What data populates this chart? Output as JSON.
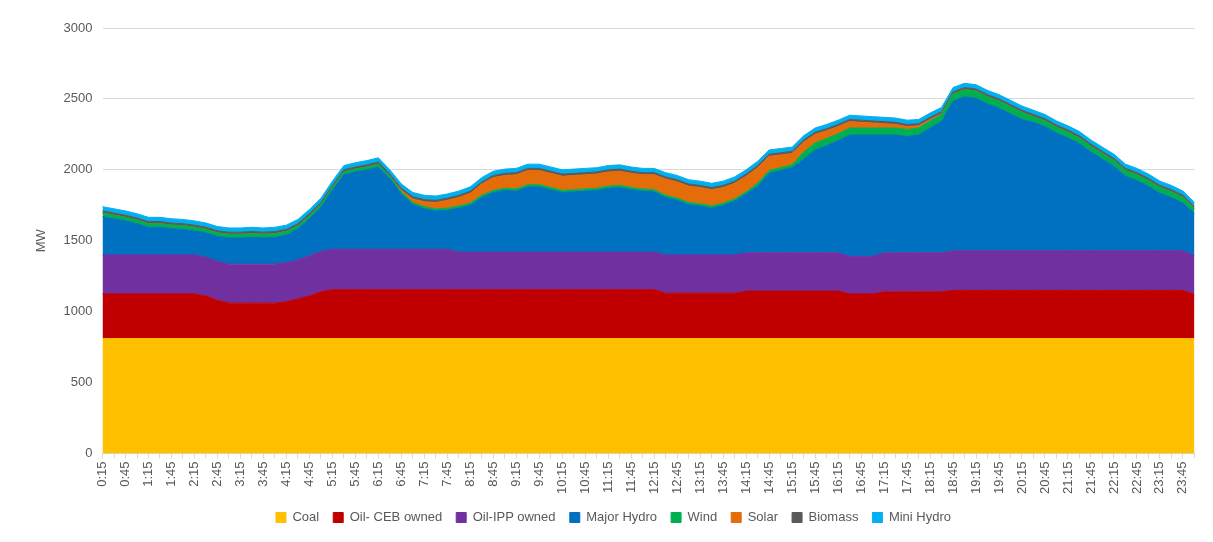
{
  "chart_data": {
    "type": "area",
    "stacked": true,
    "ylabel": "MW",
    "ylim": [
      0,
      3000
    ],
    "yticks": [
      0,
      500,
      1000,
      1500,
      2000,
      2500,
      3000
    ],
    "grid": "y",
    "legend": "bottom",
    "categories": [
      "0:15",
      null,
      "0:45",
      null,
      "1:15",
      null,
      "1:45",
      null,
      "2:15",
      null,
      "2:45",
      null,
      "3:15",
      null,
      "3:45",
      null,
      "4:15",
      null,
      "4:45",
      null,
      "5:15",
      null,
      "5:45",
      null,
      "6:15",
      null,
      "6:45",
      null,
      "7:15",
      null,
      "7:45",
      null,
      "8:15",
      null,
      "8:45",
      null,
      "9:15",
      null,
      "9:45",
      null,
      "10:15",
      null,
      "10:45",
      null,
      "11:15",
      null,
      "11:45",
      null,
      "12:15",
      null,
      "12:45",
      null,
      "13:15",
      null,
      "13:45",
      null,
      "14:15",
      null,
      "14:45",
      null,
      "15:15",
      null,
      "15:45",
      null,
      "16:15",
      null,
      "16:45",
      null,
      "17:15",
      null,
      "17:45",
      null,
      "18:15",
      null,
      "18:45",
      null,
      "19:15",
      null,
      "19:45",
      null,
      "20:15",
      null,
      "20:45",
      null,
      "21:15",
      null,
      "21:45",
      null,
      "22:15",
      null,
      "22:45",
      null,
      "23:15",
      null,
      "23:45",
      null
    ],
    "series": [
      {
        "name": "Coal",
        "color": "#ffc000",
        "values": [
          810,
          810,
          810,
          810,
          810,
          810,
          810,
          810,
          810,
          810,
          810,
          810,
          810,
          810,
          810,
          810,
          810,
          810,
          810,
          810,
          810,
          810,
          810,
          810,
          810,
          810,
          810,
          810,
          810,
          810,
          810,
          810,
          810,
          810,
          810,
          810,
          810,
          810,
          810,
          810,
          810,
          810,
          810,
          810,
          810,
          810,
          810,
          810,
          810,
          810,
          810,
          810,
          810,
          810,
          810,
          810,
          810,
          810,
          810,
          810,
          810,
          810,
          810,
          810,
          810,
          810,
          810,
          810,
          810,
          810,
          810,
          810,
          810,
          810,
          810,
          810,
          810,
          810,
          810,
          810,
          810,
          810,
          810,
          810,
          810,
          810,
          810,
          810,
          810,
          810,
          810,
          810,
          810,
          810,
          810,
          810
        ]
      },
      {
        "name": "Oil- CEB owned",
        "color": "#c00000",
        "values": [
          315,
          315,
          315,
          315,
          315,
          315,
          315,
          315,
          315,
          300,
          270,
          250,
          250,
          250,
          250,
          250,
          260,
          280,
          300,
          330,
          345,
          345,
          345,
          345,
          345,
          345,
          345,
          345,
          345,
          345,
          345,
          345,
          345,
          345,
          345,
          345,
          345,
          345,
          345,
          345,
          345,
          345,
          345,
          345,
          345,
          345,
          345,
          345,
          345,
          320,
          320,
          320,
          320,
          320,
          320,
          320,
          335,
          335,
          335,
          335,
          335,
          335,
          335,
          335,
          335,
          315,
          315,
          315,
          330,
          330,
          330,
          330,
          330,
          330,
          340,
          340,
          340,
          340,
          340,
          340,
          340,
          340,
          340,
          340,
          340,
          340,
          340,
          340,
          340,
          340,
          340,
          340,
          340,
          340,
          340,
          310
        ]
      },
      {
        "name": "Oil-IPP owned",
        "color": "#7030a0",
        "values": [
          275,
          275,
          275,
          275,
          275,
          275,
          275,
          275,
          275,
          275,
          275,
          275,
          275,
          275,
          275,
          275,
          275,
          275,
          285,
          285,
          285,
          285,
          285,
          285,
          285,
          285,
          285,
          285,
          285,
          285,
          285,
          265,
          265,
          265,
          265,
          265,
          265,
          265,
          265,
          265,
          265,
          265,
          265,
          265,
          265,
          265,
          265,
          265,
          265,
          270,
          270,
          270,
          270,
          270,
          270,
          270,
          270,
          270,
          270,
          270,
          270,
          270,
          270,
          270,
          270,
          265,
          265,
          265,
          275,
          275,
          275,
          275,
          275,
          275,
          280,
          280,
          280,
          280,
          280,
          280,
          280,
          280,
          280,
          280,
          280,
          280,
          280,
          280,
          280,
          280,
          280,
          280,
          280,
          280,
          280,
          275
        ]
      },
      {
        "name": "Major Hydro",
        "color": "#0070c0",
        "values": [
          270,
          255,
          240,
          220,
          195,
          195,
          185,
          180,
          170,
          170,
          175,
          185,
          185,
          190,
          185,
          190,
          195,
          220,
          260,
          310,
          415,
          525,
          545,
          560,
          580,
          500,
          390,
          315,
          285,
          270,
          275,
          310,
          330,
          385,
          420,
          435,
          430,
          460,
          460,
          440,
          420,
          425,
          430,
          435,
          450,
          455,
          440,
          430,
          425,
          405,
          385,
          355,
          345,
          330,
          350,
          380,
          415,
          470,
          560,
          580,
          600,
          660,
          725,
          755,
          790,
          855,
          855,
          855,
          830,
          830,
          820,
          830,
          880,
          925,
          1055,
          1085,
          1075,
          1035,
          1005,
          965,
          925,
          905,
          875,
          830,
          795,
          755,
          695,
          645,
          595,
          525,
          495,
          455,
          405,
          375,
          335,
          300
        ]
      },
      {
        "name": "Wind",
        "color": "#00b050",
        "values": [
          25,
          25,
          25,
          25,
          25,
          25,
          25,
          25,
          25,
          25,
          25,
          25,
          25,
          25,
          25,
          25,
          25,
          20,
          20,
          20,
          20,
          20,
          20,
          20,
          20,
          15,
          15,
          15,
          15,
          15,
          15,
          15,
          15,
          15,
          15,
          15,
          15,
          15,
          15,
          15,
          15,
          15,
          15,
          15,
          15,
          15,
          15,
          15,
          15,
          15,
          15,
          15,
          15,
          15,
          15,
          15,
          15,
          20,
          20,
          20,
          20,
          50,
          50,
          50,
          50,
          50,
          50,
          50,
          50,
          50,
          50,
          50,
          50,
          50,
          50,
          50,
          50,
          50,
          50,
          50,
          50,
          40,
          40,
          40,
          40,
          40,
          40,
          40,
          40,
          40,
          40,
          40,
          40,
          40,
          40,
          30
        ]
      },
      {
        "name": "Solar",
        "color": "#e46c0a",
        "values": [
          0,
          0,
          0,
          0,
          0,
          0,
          0,
          0,
          0,
          0,
          0,
          0,
          0,
          0,
          0,
          0,
          0,
          0,
          0,
          0,
          0,
          0,
          0,
          0,
          0,
          0,
          10,
          25,
          35,
          45,
          55,
          60,
          70,
          80,
          90,
          90,
          100,
          100,
          100,
          100,
          100,
          100,
          100,
          100,
          100,
          100,
          100,
          100,
          105,
          115,
          115,
          115,
          115,
          115,
          110,
          110,
          110,
          110,
          100,
          90,
          80,
          70,
          60,
          55,
          50,
          45,
          40,
          35,
          30,
          25,
          20,
          15,
          10,
          5,
          0,
          0,
          0,
          0,
          0,
          0,
          0,
          0,
          0,
          0,
          0,
          0,
          0,
          0,
          0,
          0,
          0,
          0,
          0,
          0,
          0,
          0
        ]
      },
      {
        "name": "Biomass",
        "color": "#595959",
        "values": [
          15,
          15,
          15,
          15,
          15,
          15,
          15,
          15,
          15,
          15,
          15,
          15,
          15,
          15,
          15,
          15,
          15,
          15,
          15,
          15,
          15,
          15,
          15,
          15,
          15,
          15,
          15,
          15,
          15,
          15,
          15,
          15,
          15,
          15,
          15,
          15,
          15,
          15,
          15,
          15,
          15,
          15,
          15,
          15,
          15,
          15,
          15,
          15,
          15,
          15,
          15,
          15,
          15,
          15,
          15,
          15,
          15,
          15,
          15,
          15,
          15,
          15,
          15,
          15,
          15,
          15,
          15,
          15,
          15,
          15,
          15,
          15,
          15,
          15,
          15,
          15,
          15,
          15,
          15,
          15,
          15,
          15,
          15,
          15,
          15,
          15,
          15,
          15,
          15,
          15,
          15,
          15,
          15,
          15,
          15,
          15
        ]
      },
      {
        "name": "Mini Hydro",
        "color": "#00b0f0",
        "values": [
          30,
          30,
          30,
          30,
          30,
          30,
          30,
          30,
          30,
          30,
          30,
          30,
          30,
          30,
          30,
          30,
          30,
          30,
          30,
          30,
          30,
          30,
          30,
          30,
          30,
          30,
          30,
          30,
          30,
          30,
          30,
          30,
          30,
          30,
          30,
          30,
          30,
          30,
          30,
          30,
          30,
          30,
          30,
          30,
          30,
          30,
          30,
          30,
          30,
          30,
          30,
          30,
          30,
          30,
          30,
          30,
          30,
          30,
          30,
          30,
          30,
          30,
          30,
          30,
          30,
          30,
          30,
          30,
          30,
          30,
          30,
          30,
          30,
          30,
          30,
          30,
          30,
          30,
          30,
          30,
          30,
          30,
          30,
          30,
          30,
          30,
          30,
          30,
          30,
          30,
          30,
          30,
          30,
          30,
          30,
          30
        ]
      }
    ]
  }
}
